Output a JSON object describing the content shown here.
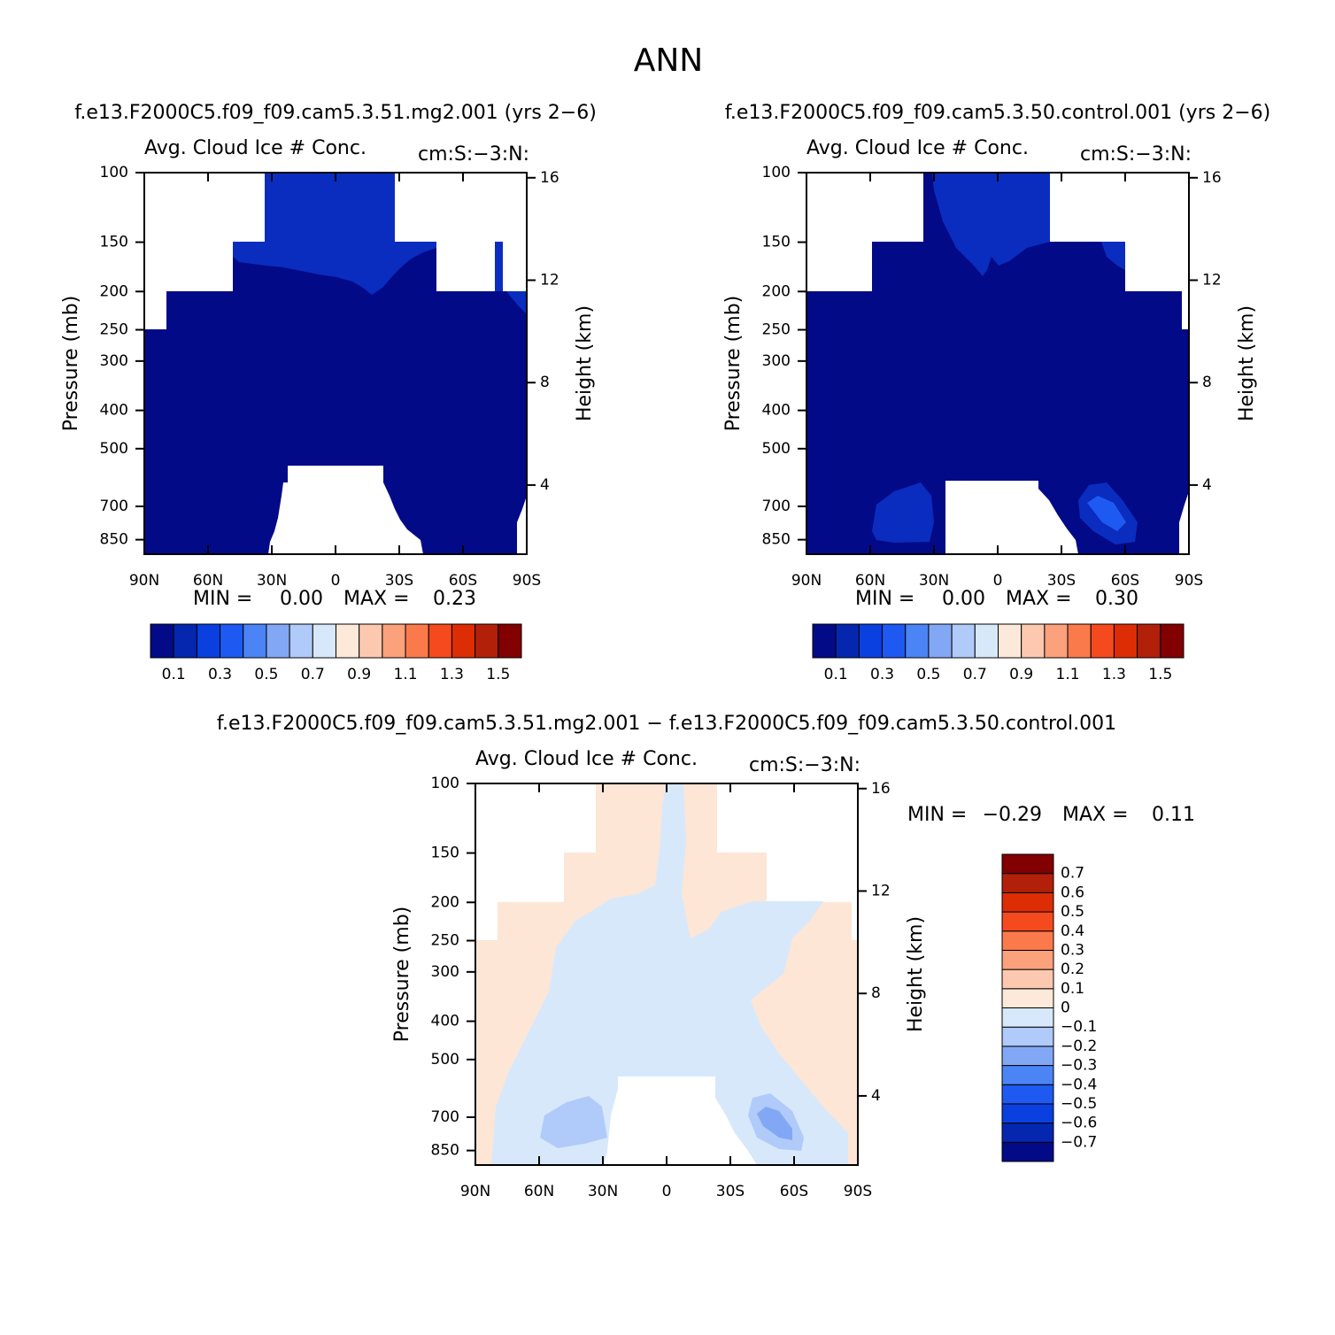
{
  "title": "ANN",
  "chart_data": [
    {
      "type": "contour",
      "title": "f.e13.F2000C5.f09_f09.cam5.3.51.mg2.001 (yrs 2−6)",
      "left_label": "Avg. Cloud Ice # Conc.",
      "right_label": "cm:S:−3:N:",
      "ylabel": "Pressure (mb)",
      "y2label": "Height (km)",
      "xlim": [
        90,
        -90
      ],
      "xticks": [
        {
          "value": 90,
          "label": "90N"
        },
        {
          "value": 60,
          "label": "60N"
        },
        {
          "value": 30,
          "label": "30N"
        },
        0,
        {
          "value": -30,
          "label": "30S"
        },
        {
          "value": -60,
          "label": "60S"
        },
        {
          "value": -90,
          "label": "90S"
        }
      ],
      "ylim": [
        100,
        925
      ],
      "yscale": "log",
      "yticks": [
        100,
        150,
        200,
        250,
        300,
        400,
        500,
        700,
        850
      ],
      "y2lim": [
        16.2,
        1.3
      ],
      "y2ticks": [
        16,
        12,
        8,
        4
      ],
      "min_text": "MIN =",
      "min": {
        "value": 0,
        "label": "0.00"
      },
      "max_text": "MAX =",
      "max": {
        "value": 0.23,
        "label": "0.23"
      },
      "colorbar": {
        "orientation": "horizontal",
        "clim": [
          0.1,
          1.5
        ],
        "ticks": [
          0.1,
          0.3,
          0.5,
          0.7,
          0.9,
          1.1,
          1.3,
          1.5
        ],
        "colors": [
          "#030a88",
          "#0527b0",
          "#0a3fe0",
          "#1e5af2",
          "#4b84f5",
          "#82a8f5",
          "#b0cafa",
          "#d8e8fb",
          "#fde9d9",
          "#fcc9b0",
          "#fba17c",
          "#fb7a4c",
          "#f54a1e",
          "#dc2d05",
          "#b2200a",
          "#820000"
        ]
      }
    },
    {
      "type": "contour",
      "title": "f.e13.F2000C5.f09_f09.cam5.3.50.control.001 (yrs 2−6)",
      "left_label": "Avg. Cloud Ice # Conc.",
      "right_label": "cm:S:−3:N:",
      "ylabel": "Pressure (mb)",
      "y2label": "Height (km)",
      "xlim": [
        90,
        -90
      ],
      "xticks": [
        {
          "value": 90,
          "label": "90N"
        },
        {
          "value": 60,
          "label": "60N"
        },
        {
          "value": 30,
          "label": "30N"
        },
        0,
        {
          "value": -30,
          "label": "30S"
        },
        {
          "value": -60,
          "label": "60S"
        },
        {
          "value": -90,
          "label": "90S"
        }
      ],
      "ylim": [
        100,
        925
      ],
      "yscale": "log",
      "yticks": [
        100,
        150,
        200,
        250,
        300,
        400,
        500,
        700,
        850
      ],
      "y2lim": [
        16.2,
        1.3
      ],
      "y2ticks": [
        16,
        12,
        8,
        4
      ],
      "min_text": "MIN =",
      "min": {
        "value": 0,
        "label": "0.00"
      },
      "max_text": "MAX =",
      "max": {
        "value": 0.3,
        "label": "0.30"
      },
      "colorbar": {
        "orientation": "horizontal",
        "clim": [
          0.1,
          1.5
        ],
        "ticks": [
          0.1,
          0.3,
          0.5,
          0.7,
          0.9,
          1.1,
          1.3,
          1.5
        ],
        "colors": [
          "#030a88",
          "#0527b0",
          "#0a3fe0",
          "#1e5af2",
          "#4b84f5",
          "#82a8f5",
          "#b0cafa",
          "#d8e8fb",
          "#fde9d9",
          "#fcc9b0",
          "#fba17c",
          "#fb7a4c",
          "#f54a1e",
          "#dc2d05",
          "#b2200a",
          "#820000"
        ]
      }
    },
    {
      "type": "contour",
      "title": "f.e13.F2000C5.f09_f09.cam5.3.51.mg2.001 − f.e13.F2000C5.f09_f09.cam5.3.50.control.001",
      "left_label": "Avg. Cloud Ice # Conc.",
      "right_label": "cm:S:−3:N:",
      "ylabel": "Pressure (mb)",
      "y2label": "Height (km)",
      "xlim": [
        90,
        -90
      ],
      "xticks": [
        {
          "value": 90,
          "label": "90N"
        },
        {
          "value": 60,
          "label": "60N"
        },
        {
          "value": 30,
          "label": "30N"
        },
        0,
        {
          "value": -30,
          "label": "30S"
        },
        {
          "value": -60,
          "label": "60S"
        },
        {
          "value": -90,
          "label": "90S"
        }
      ],
      "ylim": [
        100,
        925
      ],
      "yscale": "log",
      "yticks": [
        100,
        150,
        200,
        250,
        300,
        400,
        500,
        700,
        850
      ],
      "y2lim": [
        16.2,
        1.3
      ],
      "y2ticks": [
        16,
        12,
        8,
        4
      ],
      "min_text": "MIN =",
      "min": {
        "value": -0.29,
        "label": "−0.29"
      },
      "max_text": "MAX =",
      "max": {
        "value": 0.11,
        "label": "0.11"
      },
      "colorbar": {
        "orientation": "vertical",
        "clim": [
          -0.7,
          0.7
        ],
        "ticks": [
          0.7,
          0.6,
          0.5,
          0.4,
          0.3,
          0.2,
          0.1,
          0,
          {
            "value": -0.1,
            "label": "−0.1"
          },
          {
            "value": -0.2,
            "label": "−0.2"
          },
          {
            "value": -0.3,
            "label": "−0.3"
          },
          {
            "value": -0.4,
            "label": "−0.4"
          },
          {
            "value": -0.5,
            "label": "−0.5"
          },
          {
            "value": -0.6,
            "label": "−0.6"
          },
          {
            "value": -0.7,
            "label": "−0.7"
          }
        ],
        "colors": [
          "#030a88",
          "#0527b0",
          "#0a3fe0",
          "#1e5af2",
          "#4b84f5",
          "#82a8f5",
          "#b0cafa",
          "#d8e8fb",
          "#fde9d9",
          "#fcc9b0",
          "#fba17c",
          "#fb7a4c",
          "#f54a1e",
          "#dc2d05",
          "#b2200a",
          "#820000"
        ]
      }
    }
  ]
}
